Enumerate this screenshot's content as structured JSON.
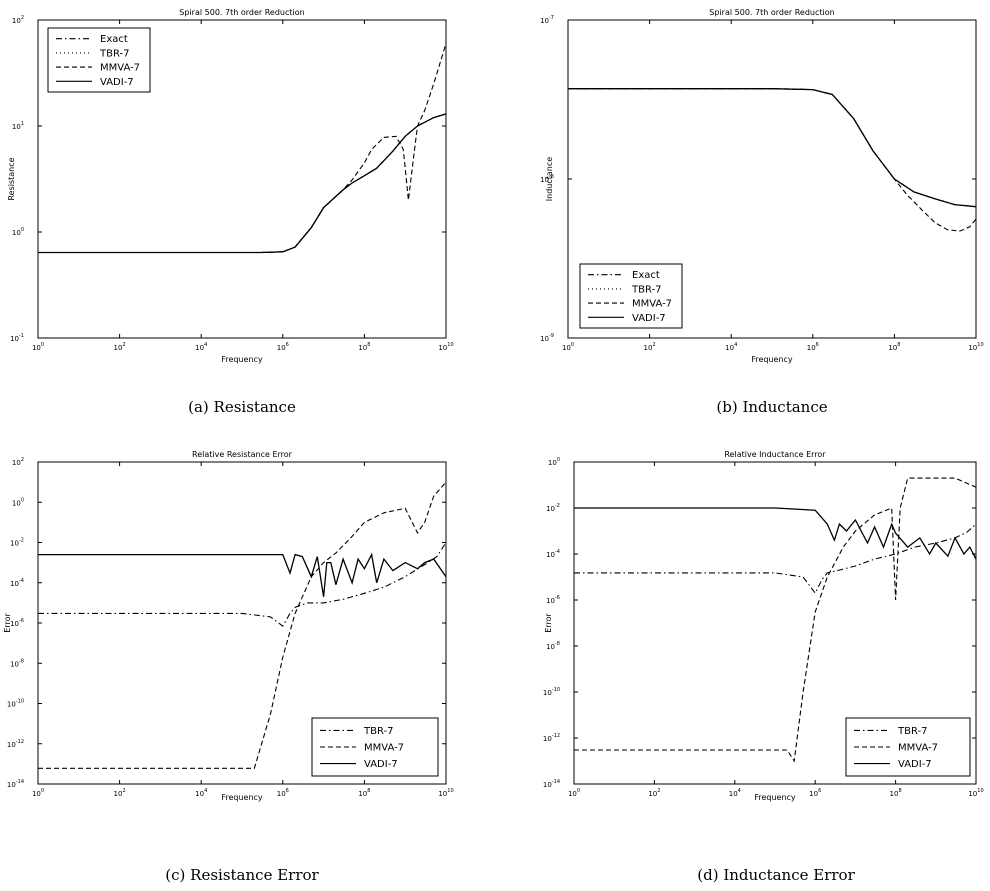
{
  "captions": [
    "(a) Resistance",
    "(b) Inductance",
    "(c) Resistance Error",
    "(d) Inductance Error"
  ],
  "chart_data": [
    {
      "type": "line",
      "title": "Spiral 500. 7th order Reduction",
      "xlabel": "Frequency",
      "ylabel": "Resistance",
      "xscale": "log",
      "yscale": "log",
      "xlim": [
        1,
        10000000000.0
      ],
      "ylim": [
        0.1,
        100
      ],
      "xtick_exponents": [
        0,
        2,
        4,
        6,
        8,
        10
      ],
      "ytick_exponents": [
        -1,
        0,
        1,
        2
      ],
      "legend": "top-left",
      "series": [
        {
          "name": "Exact",
          "style": "dashdot",
          "x": [
            1,
            100000.0,
            300000.0,
            1000000.0,
            2000000.0,
            5000000.0,
            10000000.0,
            30000000.0,
            50000000.0,
            100000000.0,
            200000000.0,
            500000000.0,
            1000000000.0,
            2000000000.0,
            5000000000.0,
            10000000000.0
          ],
          "y": [
            0.64,
            0.64,
            0.64,
            0.65,
            0.72,
            1.1,
            1.7,
            2.5,
            2.9,
            3.4,
            4.0,
            5.8,
            8.0,
            10.0,
            12.0,
            13.0
          ]
        },
        {
          "name": "TBR-7",
          "style": "dotted",
          "x": [
            1,
            100000.0,
            300000.0,
            1000000.0,
            2000000.0,
            5000000.0,
            10000000.0,
            30000000.0,
            50000000.0,
            100000000.0,
            200000000.0,
            500000000.0,
            1000000000.0,
            2000000000.0,
            5000000000.0,
            10000000000.0
          ],
          "y": [
            0.64,
            0.64,
            0.64,
            0.65,
            0.72,
            1.1,
            1.7,
            2.5,
            2.9,
            3.4,
            4.0,
            5.8,
            8.0,
            10.0,
            12.0,
            13.0
          ]
        },
        {
          "name": "MMVA-7",
          "style": "dashed",
          "x": [
            1,
            100000.0,
            300000.0,
            1000000.0,
            2000000.0,
            5000000.0,
            10000000.0,
            30000000.0,
            50000000.0,
            100000000.0,
            150000000.0,
            300000000.0,
            600000000.0,
            900000000.0,
            1200000000.0,
            1600000000.0,
            2000000000.0,
            3000000000.0,
            5000000000.0,
            10000000000.0
          ],
          "y": [
            0.64,
            0.64,
            0.64,
            0.65,
            0.72,
            1.1,
            1.7,
            2.5,
            3.1,
            4.5,
            6.0,
            7.8,
            8.0,
            6.0,
            2.0,
            5.0,
            10.0,
            14.0,
            25.0,
            60.0
          ]
        },
        {
          "name": "VADI-7",
          "style": "solid",
          "x": [
            1,
            100000.0,
            300000.0,
            1000000.0,
            2000000.0,
            5000000.0,
            10000000.0,
            30000000.0,
            50000000.0,
            100000000.0,
            200000000.0,
            500000000.0,
            1000000000.0,
            2000000000.0,
            5000000000.0,
            10000000000.0
          ],
          "y": [
            0.64,
            0.64,
            0.64,
            0.65,
            0.72,
            1.1,
            1.7,
            2.5,
            2.9,
            3.4,
            4.0,
            5.8,
            8.0,
            10.0,
            12.0,
            13.0
          ]
        }
      ]
    },
    {
      "type": "line",
      "title": "Spiral 500. 7th order Reduction",
      "xlabel": "Frequency",
      "ylabel": "Inductance",
      "xscale": "log",
      "yscale": "log",
      "xlim": [
        1,
        10000000000.0
      ],
      "ylim": [
        1e-09,
        1e-07
      ],
      "xtick_exponents": [
        0,
        2,
        4,
        6,
        8,
        10
      ],
      "ytick_exponents": [
        -9,
        -8,
        -7
      ],
      "legend": "bottom-left",
      "series": [
        {
          "name": "Exact",
          "style": "dashdot",
          "x": [
            1,
            100000.0,
            1000000.0,
            3000000.0,
            10000000.0,
            30000000.0,
            100000000.0,
            300000000.0,
            1000000000.0,
            3000000000.0,
            10000000000.0
          ],
          "y": [
            3.7e-08,
            3.7e-08,
            3.65e-08,
            3.4e-08,
            2.4e-08,
            1.5e-08,
            1e-08,
            8.3e-09,
            7.5e-09,
            6.9e-09,
            6.7e-09
          ]
        },
        {
          "name": "TBR-7",
          "style": "dotted",
          "x": [
            1,
            100000.0,
            1000000.0,
            3000000.0,
            10000000.0,
            30000000.0,
            100000000.0,
            300000000.0,
            1000000000.0,
            3000000000.0,
            10000000000.0
          ],
          "y": [
            3.7e-08,
            3.7e-08,
            3.65e-08,
            3.4e-08,
            2.4e-08,
            1.5e-08,
            1e-08,
            8.3e-09,
            7.5e-09,
            6.9e-09,
            6.7e-09
          ]
        },
        {
          "name": "MMVA-7",
          "style": "dashed",
          "x": [
            1,
            100000.0,
            1000000.0,
            3000000.0,
            10000000.0,
            30000000.0,
            100000000.0,
            200000000.0,
            500000000.0,
            1000000000.0,
            2000000000.0,
            4000000000.0,
            7000000000.0,
            10000000000.0
          ],
          "y": [
            3.7e-08,
            3.7e-08,
            3.65e-08,
            3.4e-08,
            2.4e-08,
            1.5e-08,
            1e-08,
            8e-09,
            6.3e-09,
            5.3e-09,
            4.8e-09,
            4.7e-09,
            5e-09,
            5.6e-09
          ]
        },
        {
          "name": "VADI-7",
          "style": "solid",
          "x": [
            1,
            100000.0,
            1000000.0,
            3000000.0,
            10000000.0,
            30000000.0,
            100000000.0,
            300000000.0,
            1000000000.0,
            3000000000.0,
            10000000000.0
          ],
          "y": [
            3.7e-08,
            3.7e-08,
            3.65e-08,
            3.4e-08,
            2.4e-08,
            1.5e-08,
            1e-08,
            8.3e-09,
            7.5e-09,
            6.9e-09,
            6.7e-09
          ]
        }
      ]
    },
    {
      "type": "line",
      "title": "Relative Resistance Error",
      "xlabel": "Frequency",
      "ylabel": "Error",
      "xscale": "log",
      "yscale": "log",
      "xlim": [
        1,
        10000000000.0
      ],
      "ylim": [
        1e-14,
        100
      ],
      "xtick_exponents": [
        0,
        2,
        4,
        6,
        8,
        10
      ],
      "ytick_exponents": [
        -14,
        -12,
        -10,
        -8,
        -6,
        -4,
        -2,
        0,
        2
      ],
      "legend": "bottom-right",
      "series": [
        {
          "name": "TBR-7",
          "style": "dashdot",
          "x": [
            1,
            100000.0,
            500000.0,
            1000000.0,
            1500000.0,
            2000000.0,
            4000000.0,
            10000000.0,
            30000000.0,
            100000000.0,
            300000000.0,
            1000000000.0,
            3000000000.0,
            6000000000.0,
            10000000000.0
          ],
          "y": [
            3e-06,
            3e-06,
            2e-06,
            7e-07,
            3e-06,
            6e-06,
            1e-05,
            1e-05,
            1.5e-05,
            3e-05,
            6e-05,
            0.0002,
            0.0008,
            0.002,
            0.01
          ]
        },
        {
          "name": "MMVA-7",
          "style": "dashed",
          "x": [
            1,
            100000.0,
            200000.0,
            500000.0,
            1000000.0,
            2000000.0,
            5000000.0,
            10000000.0,
            20000000.0,
            50000000.0,
            100000000.0,
            300000000.0,
            1000000000.0,
            2000000000.0,
            3000000000.0,
            5000000000.0,
            10000000000.0
          ],
          "y": [
            6e-14,
            6e-14,
            6e-14,
            3e-11,
            2e-08,
            3e-06,
            0.0002,
            0.001,
            0.003,
            0.02,
            0.1,
            0.3,
            0.5,
            0.03,
            0.1,
            2.0,
            10.0
          ]
        },
        {
          "name": "VADI-7",
          "style": "solid",
          "x": [
            1,
            100000.0,
            1000000.0,
            1500000.0,
            2000000.0,
            3000000.0,
            5000000.0,
            7000000.0,
            10000000.0,
            12000000.0,
            15000000.0,
            20000000.0,
            30000000.0,
            50000000.0,
            70000000.0,
            100000000.0,
            150000000.0,
            200000000.0,
            300000000.0,
            500000000.0,
            1000000000.0,
            2000000000.0,
            3000000000.0,
            5000000000.0,
            10000000000.0
          ],
          "y": [
            0.0025,
            0.0025,
            0.0025,
            0.0003,
            0.0025,
            0.002,
            0.0002,
            0.002,
            2e-05,
            0.001,
            0.001,
            8e-05,
            0.0015,
            0.0001,
            0.0015,
            0.0005,
            0.0025,
            0.0001,
            0.0015,
            0.0004,
            0.001,
            0.0005,
            0.001,
            0.0015,
            0.0002
          ]
        }
      ]
    },
    {
      "type": "line",
      "title": "Relative Inductance Error",
      "xlabel": "Frequency",
      "ylabel": "Error",
      "xscale": "log",
      "yscale": "log",
      "xlim": [
        1,
        10000000000.0
      ],
      "ylim": [
        1e-14,
        1
      ],
      "xtick_exponents": [
        0,
        2,
        4,
        6,
        8,
        10
      ],
      "ytick_exponents": [
        -14,
        -12,
        -10,
        -8,
        -6,
        -4,
        -2,
        0
      ],
      "legend": "bottom-right",
      "series": [
        {
          "name": "TBR-7",
          "style": "dashdot",
          "x": [
            1,
            100000.0,
            500000.0,
            1000000.0,
            1500000.0,
            2000000.0,
            4000000.0,
            10000000.0,
            30000000.0,
            100000000.0,
            300000000.0,
            1000000000.0,
            3000000000.0,
            6000000000.0,
            10000000000.0
          ],
          "y": [
            1.5e-05,
            1.5e-05,
            1e-05,
            2e-06,
            8e-06,
            1.5e-05,
            2e-05,
            3e-05,
            6e-05,
            0.0001,
            0.0002,
            0.0003,
            0.0005,
            0.0009,
            0.002
          ]
        },
        {
          "name": "MMVA-7",
          "style": "dashed",
          "x": [
            1,
            100000.0,
            200000.0,
            300000.0,
            500000.0,
            1000000.0,
            2000000.0,
            5000000.0,
            10000000.0,
            30000000.0,
            80000000.0,
            100000000.0,
            130000000.0,
            200000000.0,
            400000000.0,
            1000000000.0,
            3000000000.0,
            10000000000.0
          ],
          "y": [
            3e-13,
            3e-13,
            3e-13,
            1e-13,
            1e-10,
            3e-07,
            1e-05,
            0.0002,
            0.001,
            0.005,
            0.01,
            1e-06,
            0.01,
            0.2,
            0.2,
            0.2,
            0.2,
            0.08
          ]
        },
        {
          "name": "VADI-7",
          "style": "solid",
          "x": [
            1,
            100000.0,
            1000000.0,
            2000000.0,
            3000000.0,
            4000000.0,
            6000000.0,
            10000000.0,
            20000000.0,
            30000000.0,
            50000000.0,
            80000000.0,
            100000000.0,
            200000000.0,
            400000000.0,
            700000000.0,
            1000000000.0,
            2000000000.0,
            3000000000.0,
            5000000000.0,
            7000000000.0,
            10000000000.0
          ],
          "y": [
            0.01,
            0.01,
            0.008,
            0.002,
            0.0004,
            0.002,
            0.001,
            0.003,
            0.0003,
            0.0015,
            0.0002,
            0.002,
            0.0008,
            0.0002,
            0.0005,
            0.0001,
            0.0003,
            8e-05,
            0.0005,
            0.0001,
            0.0002,
            6e-05
          ]
        }
      ]
    }
  ]
}
